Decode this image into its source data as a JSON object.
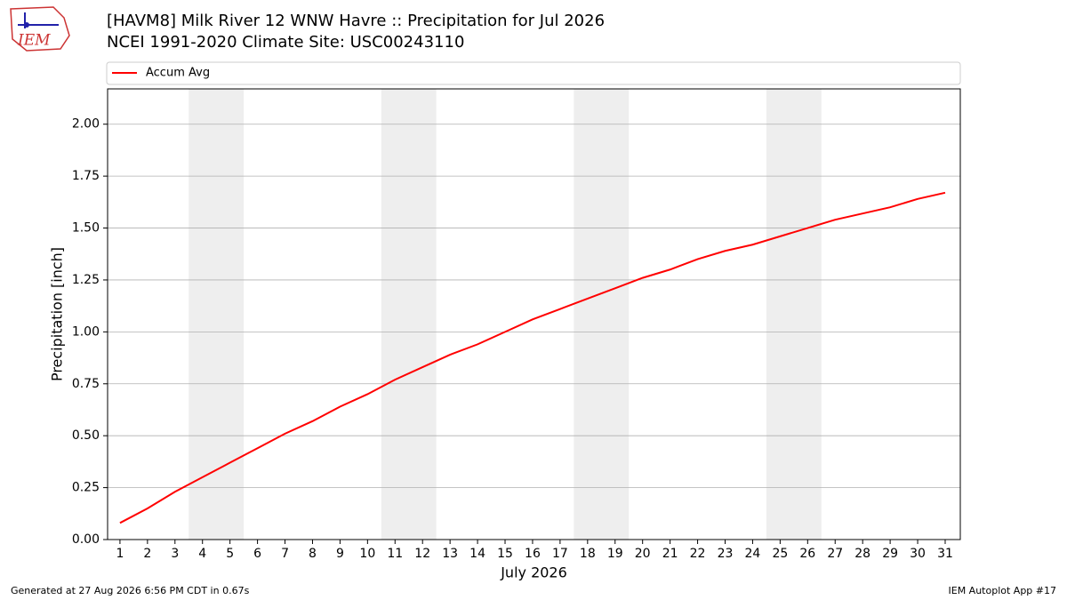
{
  "logo_text": "IEM",
  "footer_left": "Generated at 27 Aug 2026 6:56 PM CDT in 0.67s",
  "footer_right": "IEM Autoplot App #17",
  "chart_data": {
    "type": "line",
    "title": "[HAVM8] Milk River 12 WNW Havre :: Precipitation for Jul 2026",
    "subtitle": "NCEI 1991-2020 Climate Site: USC00243110",
    "x_label": "July 2026",
    "y_label": "Precipitation [inch]",
    "x": [
      1,
      2,
      3,
      4,
      5,
      6,
      7,
      8,
      9,
      10,
      11,
      12,
      13,
      14,
      15,
      16,
      17,
      18,
      19,
      20,
      21,
      22,
      23,
      24,
      25,
      26,
      27,
      28,
      29,
      30,
      31
    ],
    "series": [
      {
        "name": "Accum Avg",
        "color": "#ff0000",
        "values": [
          0.08,
          0.15,
          0.23,
          0.3,
          0.37,
          0.44,
          0.51,
          0.57,
          0.64,
          0.7,
          0.77,
          0.83,
          0.89,
          0.94,
          1.0,
          1.06,
          1.11,
          1.16,
          1.21,
          1.26,
          1.3,
          1.35,
          1.39,
          1.42,
          1.46,
          1.5,
          1.54,
          1.57,
          1.6,
          1.64,
          1.67
        ]
      }
    ],
    "shaded_spans": [
      [
        3.5,
        5.5
      ],
      [
        10.5,
        12.5
      ],
      [
        17.5,
        19.5
      ],
      [
        24.5,
        26.5
      ]
    ],
    "shade_color": "#eeeeee",
    "xlim": [
      0.55,
      31.55
    ],
    "ylim": [
      0,
      2.17
    ],
    "xticks": [
      1,
      2,
      3,
      4,
      5,
      6,
      7,
      8,
      9,
      10,
      11,
      12,
      13,
      14,
      15,
      16,
      17,
      18,
      19,
      20,
      21,
      22,
      23,
      24,
      25,
      26,
      27,
      28,
      29,
      30,
      31
    ],
    "yticks": [
      {
        "value": 0,
        "label": "0.00"
      },
      {
        "value": 0.25,
        "label": "0.25"
      },
      {
        "value": 0.5,
        "label": "0.50"
      },
      {
        "value": 0.75,
        "label": "0.75"
      },
      {
        "value": 1,
        "label": "1.00"
      },
      {
        "value": 1.25,
        "label": "1.25"
      },
      {
        "value": 1.5,
        "label": "1.50"
      },
      {
        "value": 1.75,
        "label": "1.75"
      },
      {
        "value": 2,
        "label": "2.00"
      }
    ],
    "grid": true,
    "legend": "top"
  }
}
